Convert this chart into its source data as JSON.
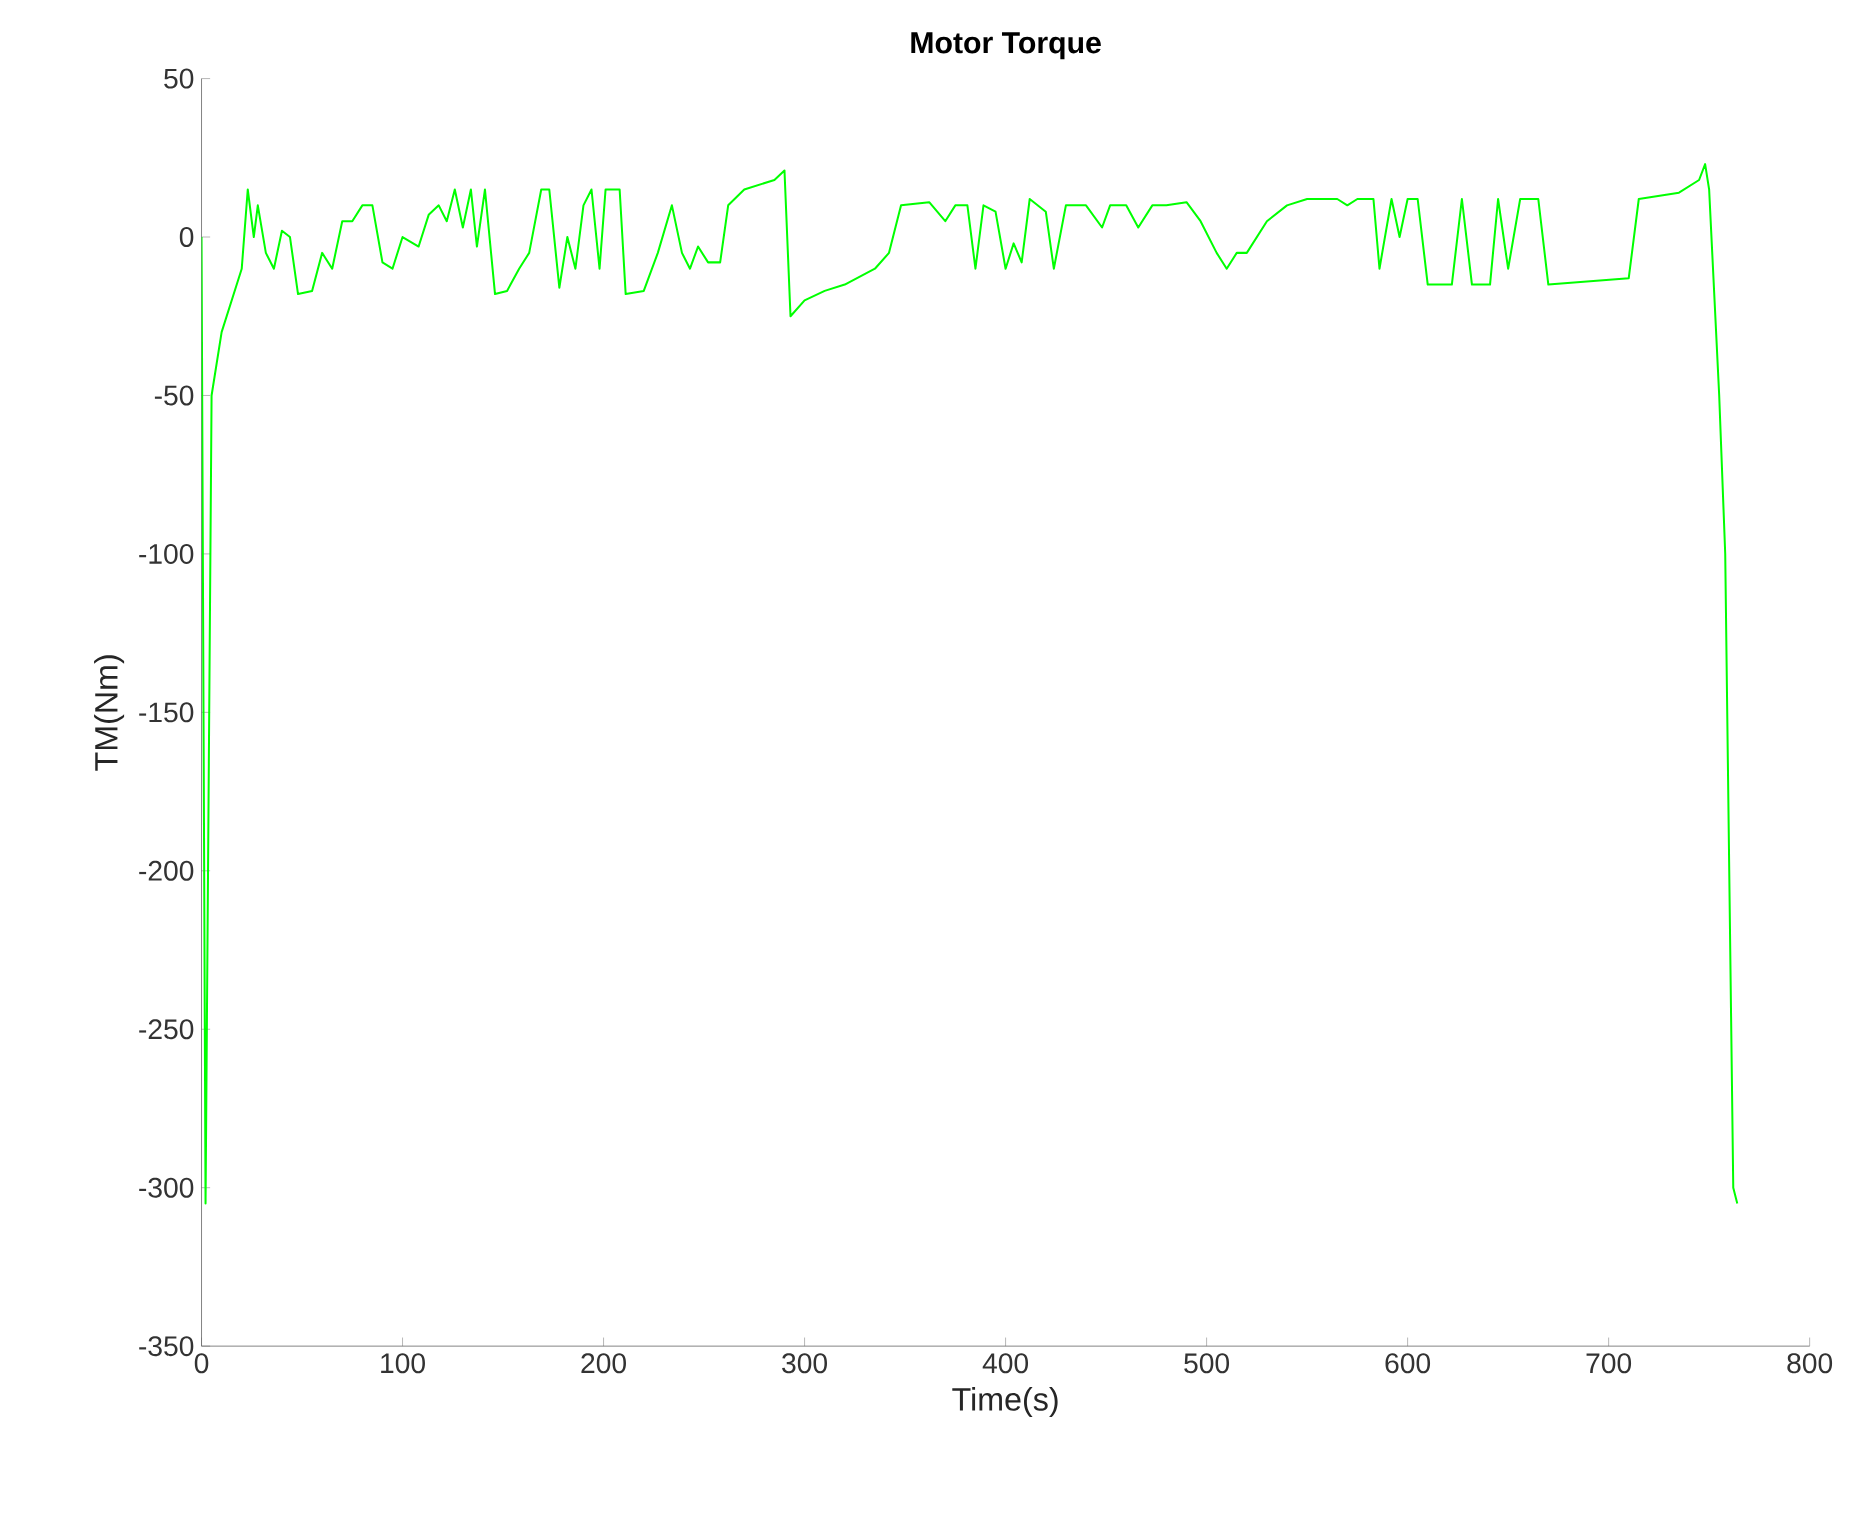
{
  "chart_data": {
    "type": "line",
    "title": "Motor Torque",
    "xlabel": "Time(s)",
    "ylabel": "TM(Nm)",
    "xlim": [
      0,
      800
    ],
    "ylim": [
      -350,
      50
    ],
    "xticks": [
      0,
      100,
      200,
      300,
      400,
      500,
      600,
      700,
      800
    ],
    "yticks": [
      -350,
      -300,
      -250,
      -200,
      -150,
      -100,
      -50,
      0,
      50
    ],
    "grid": false,
    "series": [
      {
        "color": "#00ff00",
        "x": [
          0,
          2,
          5,
          10,
          15,
          20,
          23,
          26,
          28,
          32,
          36,
          40,
          44,
          48,
          55,
          60,
          65,
          70,
          75,
          80,
          85,
          90,
          95,
          100,
          108,
          113,
          118,
          122,
          126,
          130,
          134,
          137,
          141,
          146,
          152,
          158,
          163,
          169,
          173,
          178,
          182,
          186,
          190,
          194,
          198,
          201,
          208,
          211,
          220,
          227,
          234,
          239,
          243,
          247,
          252,
          258,
          262,
          270,
          285,
          290,
          293,
          300,
          310,
          320,
          335,
          342,
          348,
          362,
          370,
          375,
          381,
          385,
          389,
          395,
          400,
          404,
          408,
          412,
          420,
          424,
          430,
          440,
          448,
          452,
          460,
          466,
          473,
          480,
          490,
          497,
          505,
          510,
          515,
          520,
          530,
          540,
          550,
          565,
          570,
          575,
          583,
          586,
          592,
          596,
          600,
          605,
          610,
          622,
          627,
          632,
          641,
          645,
          650,
          656,
          665,
          670,
          690,
          710,
          715,
          735,
          745,
          748,
          750,
          755,
          758,
          762,
          764
        ],
        "values": [
          0,
          -305,
          -50,
          -30,
          -20,
          -10,
          15,
          0,
          10,
          -5,
          -10,
          2,
          0,
          -18,
          -17,
          -5,
          -10,
          5,
          5,
          10,
          10,
          -8,
          -10,
          0,
          -3,
          7,
          10,
          5,
          15,
          3,
          15,
          -3,
          15,
          -18,
          -17,
          -10,
          -5,
          15,
          15,
          -16,
          0,
          -10,
          10,
          15,
          -10,
          15,
          15,
          -18,
          -17,
          -5,
          10,
          -5,
          -10,
          -3,
          -8,
          -8,
          10,
          15,
          18,
          21,
          -25,
          -20,
          -17,
          -15,
          -10,
          -5,
          10,
          11,
          5,
          10,
          10,
          -10,
          10,
          8,
          -10,
          -2,
          -8,
          12,
          8,
          -10,
          10,
          10,
          3,
          10,
          10,
          3,
          10,
          10,
          11,
          5,
          -5,
          -10,
          -5,
          -5,
          5,
          10,
          12,
          12,
          10,
          12,
          12,
          -10,
          12,
          0,
          12,
          12,
          -15,
          -15,
          12,
          -15,
          -15,
          12,
          -10,
          12,
          12,
          -15,
          -14,
          -13,
          12,
          14,
          18,
          23,
          15,
          -50,
          -100,
          -300,
          -305
        ]
      }
    ]
  }
}
